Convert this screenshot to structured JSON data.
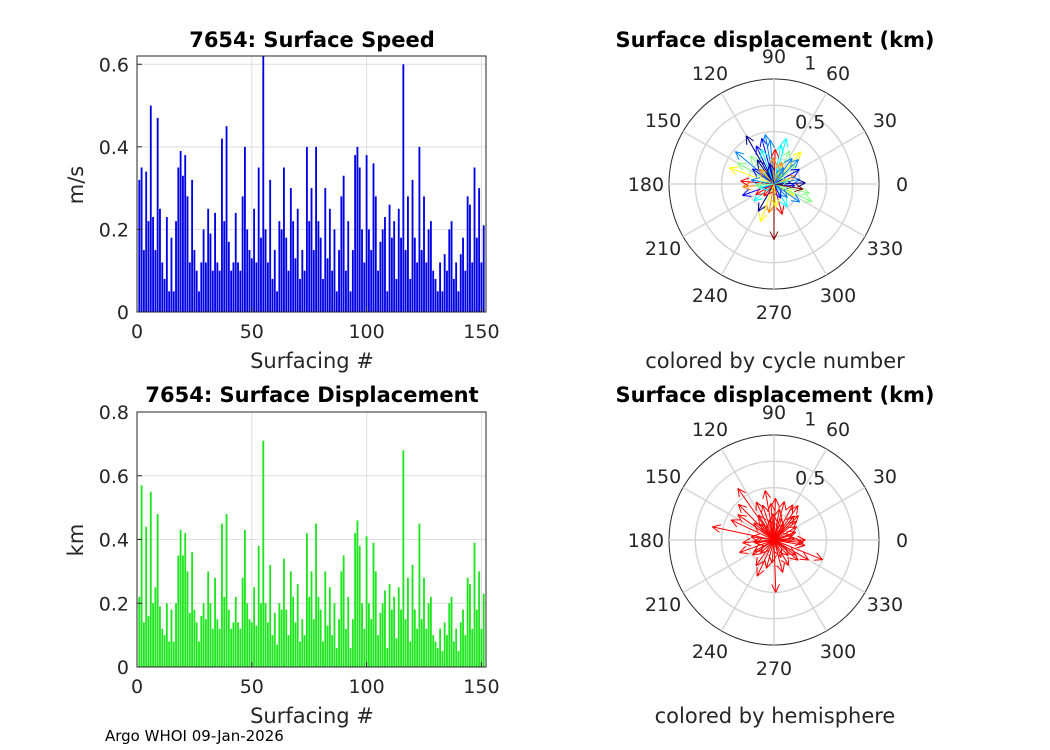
{
  "footer": "Argo WHOI 09-Jan-2026",
  "chart_data": [
    {
      "type": "bar",
      "title": "7654: Surface Speed",
      "xlabel": "Surfacing #",
      "ylabel": "m/s",
      "xlim": [
        0,
        152
      ],
      "ylim": [
        0,
        0.62
      ],
      "xticks": [
        "0",
        "50",
        "100",
        "150"
      ],
      "xtick_values": [
        0,
        50,
        100,
        150
      ],
      "yticks": [
        "0",
        "0.2",
        "0.4",
        "0.6"
      ],
      "ytick_values": [
        0,
        0.2,
        0.4,
        0.6
      ],
      "color": "#0000e6",
      "x_start": 1,
      "values": [
        0.32,
        0.35,
        0.15,
        0.34,
        0.22,
        0.5,
        0.23,
        0.15,
        0.47,
        0.25,
        0.12,
        0.08,
        0.23,
        0.05,
        0.18,
        0.05,
        0.22,
        0.35,
        0.39,
        0.33,
        0.38,
        0.28,
        0.12,
        0.32,
        0.15,
        0.1,
        0.05,
        0.12,
        0.2,
        0.12,
        0.25,
        0.19,
        0.1,
        0.24,
        0.12,
        0.1,
        0.42,
        0.22,
        0.45,
        0.17,
        0.1,
        0.12,
        0.24,
        0.12,
        0.1,
        0.28,
        0.4,
        0.2,
        0.15,
        0.13,
        0.25,
        0.12,
        0.35,
        0.18,
        0.62,
        0.2,
        0.12,
        0.32,
        0.08,
        0.15,
        0.05,
        0.22,
        0.2,
        0.35,
        0.18,
        0.1,
        0.3,
        0.22,
        0.13,
        0.25,
        0.08,
        0.15,
        0.1,
        0.4,
        0.22,
        0.3,
        0.15,
        0.4,
        0.22,
        0.18,
        0.08,
        0.3,
        0.13,
        0.25,
        0.1,
        0.2,
        0.05,
        0.15,
        0.28,
        0.33,
        0.1,
        0.22,
        0.05,
        0.15,
        0.38,
        0.4,
        0.35,
        0.2,
        0.12,
        0.38,
        0.2,
        0.15,
        0.36,
        0.28,
        0.1,
        0.17,
        0.2,
        0.23,
        0.05,
        0.26,
        0.18,
        0.22,
        0.08,
        0.25,
        0.18,
        0.6,
        0.15,
        0.28,
        0.08,
        0.32,
        0.18,
        0.12,
        0.4,
        0.15,
        0.28,
        0.12,
        0.2,
        0.22,
        0.1,
        0.08,
        0.05,
        0.12,
        0.05,
        0.14,
        0.1,
        0.2,
        0.22,
        0.08,
        0.12,
        0.05,
        0.14,
        0.18,
        0.1,
        0.28,
        0.26,
        0.12,
        0.35,
        0.18,
        0.3,
        0.12,
        0.21
      ]
    },
    {
      "type": "bar",
      "title": "7654: Surface Displacement",
      "xlabel": "Surfacing #",
      "ylabel": "km",
      "xlim": [
        0,
        152
      ],
      "ylim": [
        0,
        0.8
      ],
      "xticks": [
        "0",
        "50",
        "100",
        "150"
      ],
      "xtick_values": [
        0,
        50,
        100,
        150
      ],
      "yticks": [
        "0",
        "0.2",
        "0.4",
        "0.6",
        "0.8"
      ],
      "ytick_values": [
        0,
        0.2,
        0.4,
        0.6,
        0.8
      ],
      "color": "#1ee61e",
      "x_start": 1,
      "values": [
        0.22,
        0.57,
        0.14,
        0.44,
        0.16,
        0.55,
        0.2,
        0.25,
        0.48,
        0.19,
        0.12,
        0.1,
        0.2,
        0.08,
        0.18,
        0.08,
        0.2,
        0.35,
        0.43,
        0.35,
        0.42,
        0.3,
        0.17,
        0.36,
        0.18,
        0.14,
        0.08,
        0.16,
        0.2,
        0.15,
        0.3,
        0.2,
        0.12,
        0.28,
        0.15,
        0.12,
        0.45,
        0.22,
        0.48,
        0.18,
        0.12,
        0.14,
        0.22,
        0.14,
        0.12,
        0.28,
        0.43,
        0.2,
        0.15,
        0.14,
        0.25,
        0.13,
        0.38,
        0.2,
        0.71,
        0.2,
        0.14,
        0.32,
        0.1,
        0.17,
        0.07,
        0.2,
        0.18,
        0.34,
        0.18,
        0.1,
        0.3,
        0.22,
        0.14,
        0.26,
        0.08,
        0.15,
        0.1,
        0.42,
        0.22,
        0.3,
        0.15,
        0.45,
        0.22,
        0.18,
        0.08,
        0.3,
        0.13,
        0.25,
        0.1,
        0.2,
        0.06,
        0.15,
        0.3,
        0.35,
        0.12,
        0.22,
        0.06,
        0.15,
        0.42,
        0.46,
        0.38,
        0.2,
        0.12,
        0.41,
        0.2,
        0.15,
        0.39,
        0.3,
        0.1,
        0.17,
        0.2,
        0.24,
        0.06,
        0.26,
        0.18,
        0.22,
        0.09,
        0.25,
        0.18,
        0.68,
        0.15,
        0.28,
        0.08,
        0.32,
        0.18,
        0.12,
        0.45,
        0.15,
        0.28,
        0.12,
        0.2,
        0.22,
        0.1,
        0.08,
        0.06,
        0.12,
        0.05,
        0.14,
        0.1,
        0.2,
        0.22,
        0.08,
        0.12,
        0.05,
        0.14,
        0.18,
        0.1,
        0.28,
        0.26,
        0.12,
        0.39,
        0.18,
        0.3,
        0.12,
        0.23
      ]
    },
    {
      "type": "polar-quiver",
      "title": "Surface displacement (km)",
      "subtitle": "colored by cycle number",
      "rlim": [
        0,
        1
      ],
      "rticks": [
        "0.5",
        "1"
      ],
      "rtick_values": [
        0.5,
        1
      ],
      "angle_labels": [
        "0",
        "30",
        "60",
        "90",
        "120",
        "150",
        "180",
        "210",
        "240",
        "270",
        "300",
        "330"
      ],
      "angle_values": [
        0,
        30,
        60,
        90,
        120,
        150,
        180,
        210,
        240,
        270,
        300,
        330
      ],
      "color_mode": "cycle",
      "colormap": [
        "#00008f",
        "#0000ff",
        "#0080ff",
        "#00ffff",
        "#80ff80",
        "#ffff00",
        "#ff8000",
        "#ff0000",
        "#800000"
      ],
      "vectors": [
        {
          "a": 120,
          "r": 0.53,
          "c": 0.05
        },
        {
          "a": 105,
          "r": 0.45,
          "c": 0.15
        },
        {
          "a": 95,
          "r": 0.42,
          "c": 0.25
        },
        {
          "a": 80,
          "r": 0.38,
          "c": 0.35
        },
        {
          "a": 65,
          "r": 0.35,
          "c": 0.45
        },
        {
          "a": 55,
          "r": 0.3,
          "c": 0.2
        },
        {
          "a": 40,
          "r": 0.28,
          "c": 0.55
        },
        {
          "a": 20,
          "r": 0.22,
          "c": 0.8
        },
        {
          "a": 10,
          "r": 0.25,
          "c": 0.3
        },
        {
          "a": -5,
          "r": 0.2,
          "c": 0.1
        },
        {
          "a": -15,
          "r": 0.35,
          "c": 0.5
        },
        {
          "a": -30,
          "r": 0.22,
          "c": 0.65
        },
        {
          "a": -60,
          "r": 0.25,
          "c": 0.4
        },
        {
          "a": -75,
          "r": 0.3,
          "c": 0.9
        },
        {
          "a": -90,
          "r": 0.53,
          "c": 0.95
        },
        {
          "a": -100,
          "r": 0.28,
          "c": 0.7
        },
        {
          "a": -120,
          "r": 0.3,
          "c": 0.05
        },
        {
          "a": -140,
          "r": 0.25,
          "c": 0.35
        },
        {
          "a": -160,
          "r": 0.32,
          "c": 0.15
        },
        {
          "a": -175,
          "r": 0.3,
          "c": 0.75
        },
        {
          "a": 175,
          "r": 0.32,
          "c": 0.85
        },
        {
          "a": 160,
          "r": 0.45,
          "c": 0.6
        },
        {
          "a": 150,
          "r": 0.4,
          "c": 0.45
        },
        {
          "a": 140,
          "r": 0.48,
          "c": 0.3
        },
        {
          "a": 130,
          "r": 0.35,
          "c": 0.55
        },
        {
          "a": 115,
          "r": 0.4,
          "c": 0.1
        },
        {
          "a": 100,
          "r": 0.48,
          "c": 0.2
        },
        {
          "a": 88,
          "r": 0.33,
          "c": 0.9
        },
        {
          "a": 75,
          "r": 0.45,
          "c": 0.4
        },
        {
          "a": 50,
          "r": 0.4,
          "c": 0.6
        },
        {
          "a": 30,
          "r": 0.28,
          "c": 0.1
        },
        {
          "a": 2,
          "r": 0.3,
          "c": 0.05
        },
        {
          "a": -25,
          "r": 0.4,
          "c": 0.5
        },
        {
          "a": -45,
          "r": 0.18,
          "c": 0.2
        },
        {
          "a": -110,
          "r": 0.38,
          "c": 0.65
        },
        {
          "a": -150,
          "r": 0.2,
          "c": 0.9
        },
        {
          "a": 170,
          "r": 0.22,
          "c": 0.25
        },
        {
          "a": 145,
          "r": 0.25,
          "c": 0.15
        },
        {
          "a": 125,
          "r": 0.28,
          "c": 0.05
        },
        {
          "a": 110,
          "r": 0.35,
          "c": 0.35
        },
        {
          "a": 92,
          "r": 0.25,
          "c": 0.7
        },
        {
          "a": 70,
          "r": 0.22,
          "c": 0.8
        },
        {
          "a": 45,
          "r": 0.33,
          "c": 0.2
        },
        {
          "a": 15,
          "r": 0.15,
          "c": 0.45
        },
        {
          "a": -10,
          "r": 0.28,
          "c": 0.95
        },
        {
          "a": -35,
          "r": 0.3,
          "c": 0.3
        },
        {
          "a": -65,
          "r": 0.15,
          "c": 0.1
        },
        {
          "a": -85,
          "r": 0.22,
          "c": 0.6
        },
        {
          "a": -130,
          "r": 0.15,
          "c": 0.85
        },
        {
          "a": -165,
          "r": 0.15,
          "c": 0.4
        },
        {
          "a": 185,
          "r": 0.18,
          "c": 0.55
        },
        {
          "a": 135,
          "r": 0.2,
          "c": 0.75
        },
        {
          "a": 102,
          "r": 0.2,
          "c": 0.05
        },
        {
          "a": 60,
          "r": 0.18,
          "c": 0.25
        }
      ]
    },
    {
      "type": "polar-quiver",
      "title": "Surface displacement (km)",
      "subtitle": "colored by hemisphere",
      "rlim": [
        0,
        1
      ],
      "rticks": [
        "0.5",
        "1"
      ],
      "rtick_values": [
        0.5,
        1
      ],
      "angle_labels": [
        "0",
        "30",
        "60",
        "90",
        "120",
        "150",
        "180",
        "210",
        "240",
        "270",
        "300",
        "330"
      ],
      "angle_values": [
        0,
        30,
        60,
        90,
        120,
        150,
        180,
        210,
        240,
        270,
        300,
        330
      ],
      "color_mode": "single",
      "color": "#ff0000",
      "vectors": [
        {
          "a": 125,
          "r": 0.6
        },
        {
          "a": 100,
          "r": 0.48
        },
        {
          "a": 88,
          "r": 0.4
        },
        {
          "a": 75,
          "r": 0.38
        },
        {
          "a": 62,
          "r": 0.38
        },
        {
          "a": 50,
          "r": 0.3
        },
        {
          "a": 40,
          "r": 0.28
        },
        {
          "a": 20,
          "r": 0.22
        },
        {
          "a": 5,
          "r": 0.2
        },
        {
          "a": -10,
          "r": 0.3
        },
        {
          "a": -22,
          "r": 0.5
        },
        {
          "a": -35,
          "r": 0.25
        },
        {
          "a": -60,
          "r": 0.28
        },
        {
          "a": -75,
          "r": 0.32
        },
        {
          "a": -88,
          "r": 0.5
        },
        {
          "a": -105,
          "r": 0.28
        },
        {
          "a": -125,
          "r": 0.3
        },
        {
          "a": -145,
          "r": 0.25
        },
        {
          "a": -160,
          "r": 0.35
        },
        {
          "a": -175,
          "r": 0.3
        },
        {
          "a": 168,
          "r": 0.6
        },
        {
          "a": 155,
          "r": 0.45
        },
        {
          "a": 145,
          "r": 0.42
        },
        {
          "a": 135,
          "r": 0.48
        },
        {
          "a": 115,
          "r": 0.4
        },
        {
          "a": 95,
          "r": 0.35
        },
        {
          "a": 80,
          "r": 0.3
        },
        {
          "a": 55,
          "r": 0.4
        },
        {
          "a": 30,
          "r": 0.25
        },
        {
          "a": 0,
          "r": 0.3
        },
        {
          "a": -30,
          "r": 0.38
        },
        {
          "a": -48,
          "r": 0.2
        },
        {
          "a": -115,
          "r": 0.38
        },
        {
          "a": -150,
          "r": 0.22
        },
        {
          "a": 172,
          "r": 0.22
        },
        {
          "a": 140,
          "r": 0.25
        },
        {
          "a": 122,
          "r": 0.28
        },
        {
          "a": 108,
          "r": 0.35
        },
        {
          "a": 92,
          "r": 0.25
        },
        {
          "a": 70,
          "r": 0.22
        },
        {
          "a": 45,
          "r": 0.33
        },
        {
          "a": 15,
          "r": 0.18
        },
        {
          "a": -5,
          "r": 0.28
        },
        {
          "a": -40,
          "r": 0.3
        },
        {
          "a": -68,
          "r": 0.18
        },
        {
          "a": -95,
          "r": 0.22
        },
        {
          "a": -135,
          "r": 0.18
        },
        {
          "a": -170,
          "r": 0.18
        },
        {
          "a": 185,
          "r": 0.2
        },
        {
          "a": 130,
          "r": 0.2
        },
        {
          "a": 103,
          "r": 0.2
        },
        {
          "a": 60,
          "r": 0.18
        }
      ]
    }
  ]
}
